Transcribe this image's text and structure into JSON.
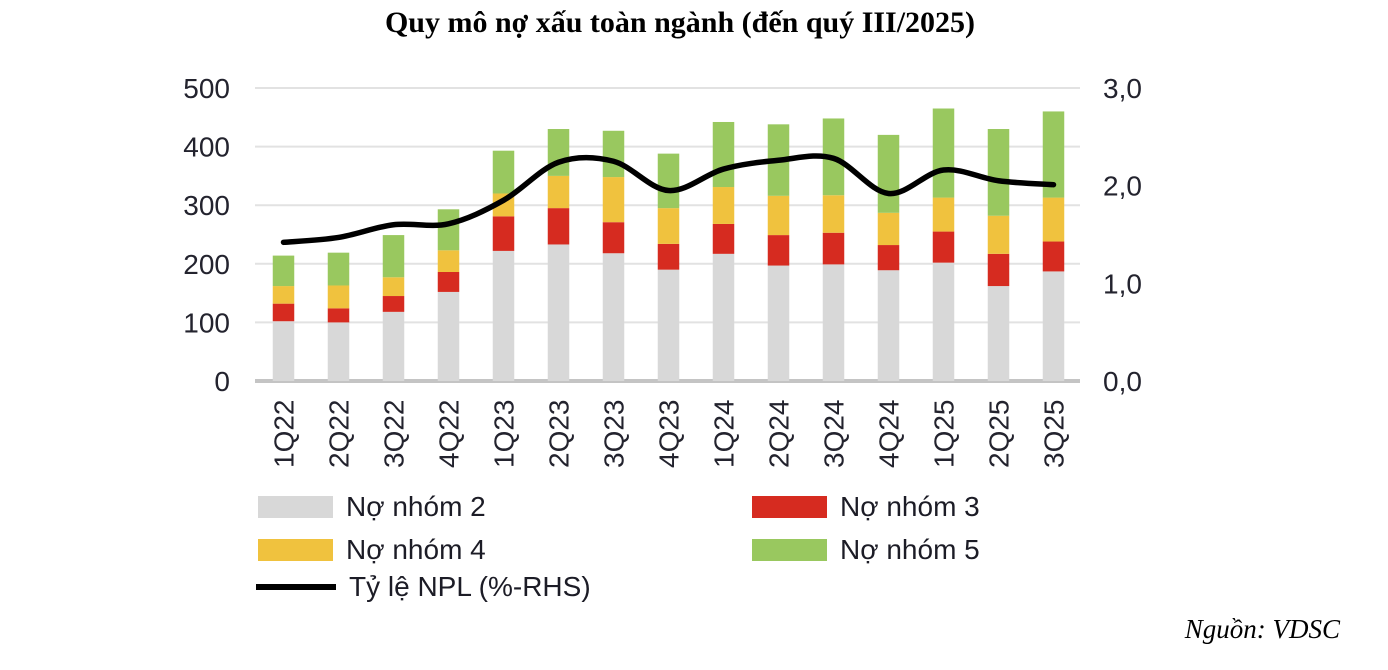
{
  "title": "Quy mô nợ xấu toàn ngành (đến quý III/2025)",
  "source_label": "Nguồn: VDSC",
  "chart_data": {
    "type": "bar",
    "subtype": "stacked-bars-with-line-overlay",
    "title": "Quy mô nợ xấu toàn ngành (đến quý III/2025)",
    "categories": [
      "1Q22",
      "2Q22",
      "3Q22",
      "4Q22",
      "1Q23",
      "2Q23",
      "3Q23",
      "4Q23",
      "1Q24",
      "2Q24",
      "3Q24",
      "4Q24",
      "1Q25",
      "2Q25",
      "3Q25"
    ],
    "series": [
      {
        "name": "Nợ nhóm 2",
        "color": "#d8d8d8",
        "values": [
          102,
          100,
          118,
          152,
          222,
          233,
          218,
          190,
          217,
          197,
          199,
          189,
          202,
          162,
          187
        ]
      },
      {
        "name": "Nợ nhóm 3",
        "color": "#d62b20",
        "values": [
          30,
          24,
          27,
          34,
          59,
          62,
          53,
          44,
          51,
          52,
          54,
          43,
          53,
          55,
          51
        ]
      },
      {
        "name": "Nợ nhóm 4",
        "color": "#f0c23e",
        "values": [
          30,
          39,
          32,
          37,
          39,
          55,
          77,
          61,
          63,
          67,
          64,
          55,
          58,
          65,
          75
        ]
      },
      {
        "name": "Nợ nhóm 5",
        "color": "#99c85f",
        "values": [
          52,
          56,
          72,
          70,
          73,
          80,
          79,
          93,
          111,
          122,
          131,
          133,
          152,
          148,
          147
        ]
      }
    ],
    "bar_totals": [
      214,
      219,
      249,
      293,
      393,
      430,
      427,
      388,
      442,
      438,
      448,
      420,
      465,
      430,
      460
    ],
    "line_series": {
      "name": "Tỷ lệ NPL (%-RHS)",
      "color": "#000000",
      "axis": "right",
      "values": [
        1.42,
        1.47,
        1.6,
        1.61,
        1.85,
        2.24,
        2.25,
        1.95,
        2.17,
        2.26,
        2.28,
        1.92,
        2.16,
        2.05,
        2.01
      ]
    },
    "left_axis": {
      "range": [
        0,
        500
      ],
      "tick_values": [
        0,
        100,
        200,
        300,
        400,
        500
      ],
      "tick_labels": [
        "0",
        "100",
        "200",
        "300",
        "400",
        "500"
      ]
    },
    "right_axis": {
      "range": [
        0,
        3
      ],
      "tick_values": [
        0,
        1,
        2,
        3
      ],
      "tick_labels": [
        "0,0",
        "1,0",
        "2,0",
        "3,0"
      ]
    },
    "grid": true,
    "legend_position": "bottom"
  }
}
